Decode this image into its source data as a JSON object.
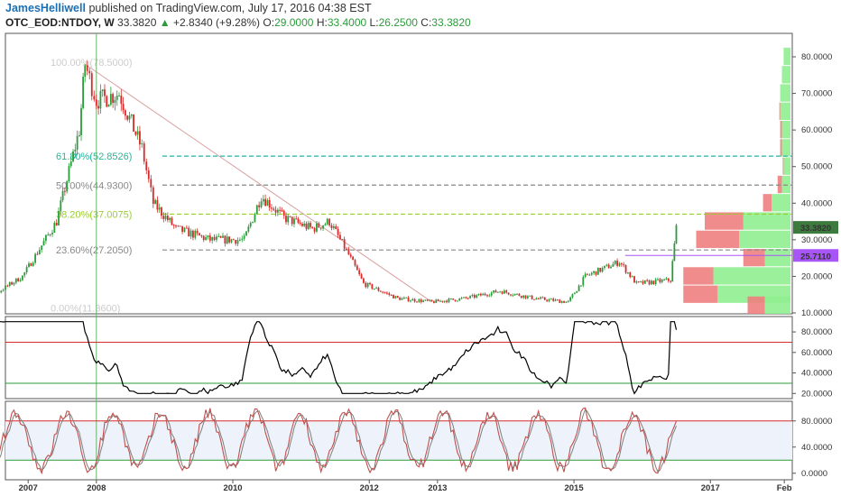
{
  "header": {
    "author": "JamesHelliwell",
    "published": "published on TradingView.com, July 17, 2016 04:38 EST",
    "symbol": "OTC_EOD:NTDOY, W",
    "last": "33.3820",
    "change": "+2.8340 (+9.28%)",
    "open_label": "O:",
    "open": "29.0000",
    "high_label": "H:",
    "high": "33.4000",
    "low_label": "L:",
    "low": "26.2500",
    "close_label": "C:",
    "close": "33.3820"
  },
  "colors": {
    "up": "#2a9d3a",
    "down": "#d62a2a",
    "rsi": "#000000",
    "stoch_k": "#c0504d",
    "stoch_d": "#7f7f7f",
    "fib_618": "#2bb39a",
    "fib_382": "#9acd32",
    "fib_gray": "#888888",
    "vp_up": "#90ee90",
    "vp_down": "#f08080",
    "price_tag": "#3d7a3d",
    "level_tag": "#a855f7"
  },
  "chart_data": [
    {
      "type": "candlestick",
      "x_ticks": [
        "2007",
        "2008",
        "2010",
        "2012",
        "2013",
        "2015",
        "2017",
        "Feb"
      ],
      "y_ticks": [
        "80.0000",
        "70.0000",
        "60.0000",
        "50.0000",
        "40.0000",
        "30.0000",
        "20.0000",
        "10.0000"
      ],
      "ylim": [
        10,
        80
      ],
      "close_path": [
        {
          "x": "2006-01",
          "y": 12
        },
        {
          "x": "2006-06",
          "y": 14
        },
        {
          "x": "2006-12",
          "y": 20
        },
        {
          "x": "2007-06",
          "y": 35
        },
        {
          "x": "2007-10",
          "y": 60
        },
        {
          "x": "2007-11",
          "y": 78
        },
        {
          "x": "2008-01",
          "y": 68
        },
        {
          "x": "2008-05",
          "y": 70
        },
        {
          "x": "2008-09",
          "y": 55
        },
        {
          "x": "2008-11",
          "y": 40
        },
        {
          "x": "2009-03",
          "y": 33
        },
        {
          "x": "2009-09",
          "y": 30
        },
        {
          "x": "2010-03",
          "y": 30
        },
        {
          "x": "2010-06",
          "y": 42
        },
        {
          "x": "2010-10",
          "y": 36
        },
        {
          "x": "2011-03",
          "y": 33
        },
        {
          "x": "2011-06",
          "y": 35
        },
        {
          "x": "2011-09",
          "y": 27
        },
        {
          "x": "2011-12",
          "y": 18
        },
        {
          "x": "2012-06",
          "y": 14
        },
        {
          "x": "2012-12",
          "y": 13
        },
        {
          "x": "2013-06",
          "y": 14
        },
        {
          "x": "2013-12",
          "y": 16
        },
        {
          "x": "2014-06",
          "y": 14
        },
        {
          "x": "2014-12",
          "y": 13
        },
        {
          "x": "2015-03",
          "y": 20
        },
        {
          "x": "2015-06",
          "y": 22
        },
        {
          "x": "2015-09",
          "y": 24
        },
        {
          "x": "2015-12",
          "y": 18
        },
        {
          "x": "2016-06",
          "y": 19
        },
        {
          "x": "2016-07",
          "y": 33.382
        }
      ],
      "fib_levels": [
        {
          "label": "100.00%(78.5000)",
          "value": 78.5
        },
        {
          "label": "61.80%(52.8526)",
          "value": 52.8526
        },
        {
          "label": "50.00%(44.9300)",
          "value": 44.93
        },
        {
          "label": "38.20%(37.0075)",
          "value": 37.0075
        },
        {
          "label": "23.60%(27.2050)",
          "value": 27.205
        },
        {
          "label": "0.00%(11.3600)",
          "value": 11.36
        }
      ],
      "price_tags": [
        {
          "label": "33.3820",
          "value": 33.382
        },
        {
          "label": "25.7110",
          "value": 25.711
        }
      ],
      "volume_profile": [
        {
          "price": 80,
          "up": 0.08,
          "down": 0
        },
        {
          "price": 75,
          "up": 0.1,
          "down": 0
        },
        {
          "price": 70,
          "up": 0.12,
          "down": 0
        },
        {
          "price": 65,
          "up": 0.12,
          "down": 0.01
        },
        {
          "price": 60,
          "up": 0.1,
          "down": 0.02
        },
        {
          "price": 55,
          "up": 0.1,
          "down": 0.02
        },
        {
          "price": 50,
          "up": 0.08,
          "down": 0.01
        },
        {
          "price": 45,
          "up": 0.1,
          "down": 0.05
        },
        {
          "price": 40,
          "up": 0.22,
          "down": 0.1
        },
        {
          "price": 35,
          "up": 0.55,
          "down": 0.45
        },
        {
          "price": 30,
          "up": 0.6,
          "down": 0.5
        },
        {
          "price": 25,
          "up": 0.3,
          "down": 0.25
        },
        {
          "price": 20,
          "up": 0.9,
          "down": 0.35
        },
        {
          "price": 15,
          "up": 0.85,
          "down": 0.4
        },
        {
          "price": 12,
          "up": 0.3,
          "down": 0.2
        }
      ]
    },
    {
      "type": "line",
      "indicator": "rsi",
      "y_ticks": [
        "80.0000",
        "60.0000",
        "40.0000",
        "20.0000"
      ],
      "ylim": [
        15,
        95
      ],
      "bands": [
        70,
        30
      ],
      "last": 82
    },
    {
      "type": "line",
      "indicator": "stochastic",
      "y_ticks": [
        "80.0000",
        "40.0000",
        "0.0000"
      ],
      "ylim": [
        -10,
        110
      ],
      "bands": [
        80,
        20
      ],
      "last": 80
    }
  ]
}
